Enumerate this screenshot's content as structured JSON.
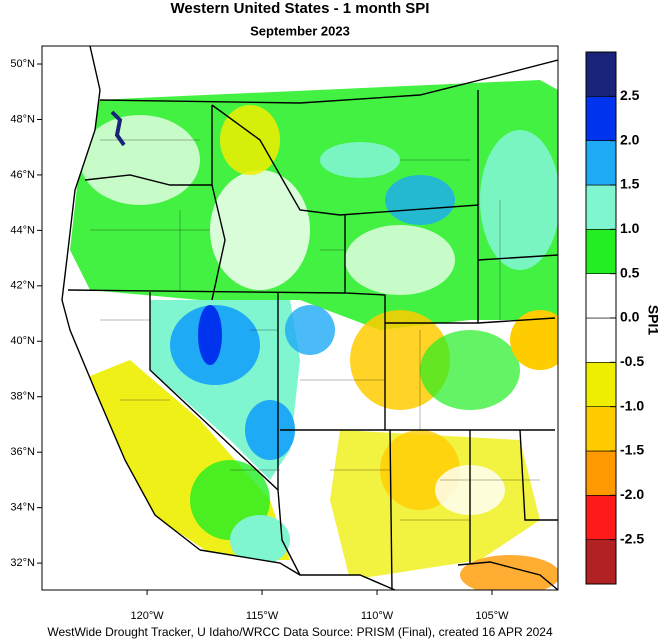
{
  "title": "Western United States - 1 month SPI",
  "subtitle": "September 2023",
  "map": {
    "lat_lim": [
      31.03,
      50.65
    ],
    "lon_lim": [
      -124.57,
      -102.13
    ],
    "lat_ticks": [
      {
        "value": 32,
        "label": "32°N"
      },
      {
        "value": 34,
        "label": "34°N"
      },
      {
        "value": 36,
        "label": "36°N"
      },
      {
        "value": 38,
        "label": "38°N"
      },
      {
        "value": 40,
        "label": "40°N"
      },
      {
        "value": 42,
        "label": "42°N"
      },
      {
        "value": 44,
        "label": "44°N"
      },
      {
        "value": 46,
        "label": "46°N"
      },
      {
        "value": 48,
        "label": "48°N"
      },
      {
        "value": 50,
        "label": "50°N"
      }
    ],
    "lon_ticks": [
      {
        "value": -120,
        "label": "120°W"
      },
      {
        "value": -115,
        "label": "115°W"
      },
      {
        "value": -110,
        "label": "110°W"
      },
      {
        "value": -105,
        "label": "105°W"
      }
    ]
  },
  "colorbar": {
    "label": "SPI1",
    "bounds": [
      -3,
      -2.5,
      -2,
      -1.5,
      -1,
      -0.5,
      0,
      0.5,
      1,
      1.5,
      2,
      2.5,
      3
    ],
    "colors": [
      "#b22222",
      "#ff1a1a",
      "#ff9900",
      "#ffcc00",
      "#eeee00",
      "#ffffff",
      "#ffffff",
      "#22ee22",
      "#7ff5d0",
      "#1eaaf5",
      "#0033ee",
      "#1a237a"
    ],
    "ticks": [
      -2.5,
      {
        "value": -2,
        "label": "-2.0"
      },
      -1.5,
      {
        "value": -1,
        "label": "-1.0"
      },
      -0.5,
      {
        "value": 0,
        "label": "0.0"
      },
      0.5,
      {
        "value": 1,
        "label": "1.0"
      },
      1.5,
      {
        "value": 2,
        "label": "2.0"
      },
      2.5
    ]
  },
  "footer": "WestWide Drought Tracker, U Idaho/WRCC Data Source: PRISM (Final), created 16 APR 2024"
}
